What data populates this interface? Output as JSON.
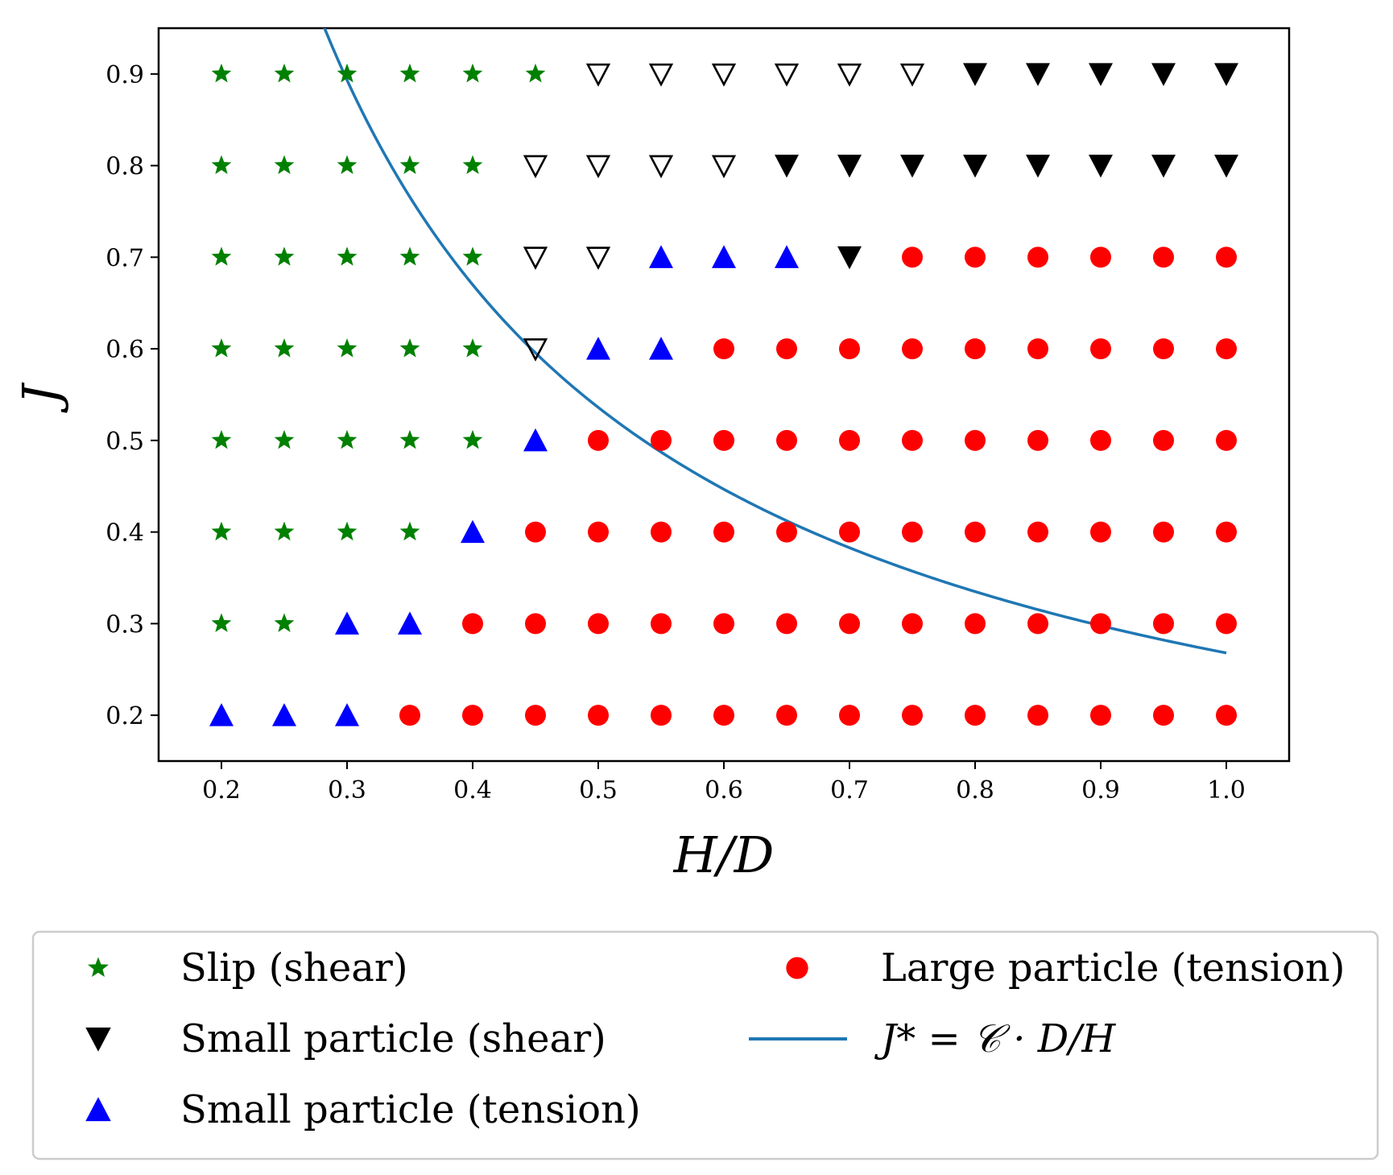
{
  "chart_data": {
    "type": "scatter",
    "title": "",
    "xlabel": "H/D",
    "ylabel": "J",
    "xlim": [
      0.15,
      1.05
    ],
    "ylim": [
      0.15,
      0.95
    ],
    "xticks": [
      "0.2",
      "0.3",
      "0.4",
      "0.5",
      "0.6",
      "0.7",
      "0.8",
      "0.9",
      "1.0"
    ],
    "yticks": [
      "0.2",
      "0.3",
      "0.4",
      "0.5",
      "0.6",
      "0.7",
      "0.8",
      "0.9"
    ],
    "x_grid": [
      0.2,
      0.25,
      0.3,
      0.35,
      0.4,
      0.45,
      0.5,
      0.55,
      0.6,
      0.65,
      0.7,
      0.75,
      0.8,
      0.85,
      0.9,
      0.95,
      1.0
    ],
    "y_grid": [
      0.2,
      0.3,
      0.4,
      0.5,
      0.6,
      0.7,
      0.8,
      0.9
    ],
    "grid_codes": {
      "S": "slip_shear",
      "B": "small_particle_shear",
      "O": "small_particle_shear_open",
      "U": "small_particle_tension",
      "R": "large_particle_tension"
    },
    "grid": [
      "SSSSSSOOOOOOBBBBB",
      "SSSSSOOOOBBBBBBBB",
      "SSSSSOOUUUBRRRRRR",
      "SSSSSOUURRRRRRRRR",
      "SSSSSURRRRRRRRRRR",
      "SSSSURRRRRRRRRRRR",
      "SSUURRRRRRRRRRRRR",
      "UUURRRRRRRRRRRRRR"
    ],
    "series": [
      {
        "key": "slip_shear",
        "name": "Slip (shear)",
        "marker": "star",
        "color": "#008000",
        "in_legend": true
      },
      {
        "key": "small_particle_shear",
        "name": "Small particle (shear)",
        "marker": "triangle-down",
        "color": "#000000",
        "in_legend": true
      },
      {
        "key": "small_particle_tension",
        "name": "Small particle (tension)",
        "marker": "triangle-up",
        "color": "#0000ff",
        "in_legend": true
      },
      {
        "key": "large_particle_tension",
        "name": "Large particle (tension)",
        "marker": "circle",
        "color": "#ff0000",
        "in_legend": true
      },
      {
        "key": "small_particle_shear_open",
        "name": "",
        "marker": "triangle-down-open",
        "color": "#000000",
        "in_legend": false
      }
    ],
    "curve": {
      "name": "J* = C · D/H",
      "label_display": "J* = 𝒞 · D/H",
      "color": "#1f77b4",
      "constant_C": 0.268,
      "x_range": [
        0.2,
        1.0
      ]
    },
    "legend": {
      "position": "bottom",
      "columns": [
        [
          "slip_shear",
          "small_particle_shear",
          "small_particle_tension"
        ],
        [
          "large_particle_tension",
          "curve"
        ]
      ]
    },
    "grid_lines": false
  }
}
